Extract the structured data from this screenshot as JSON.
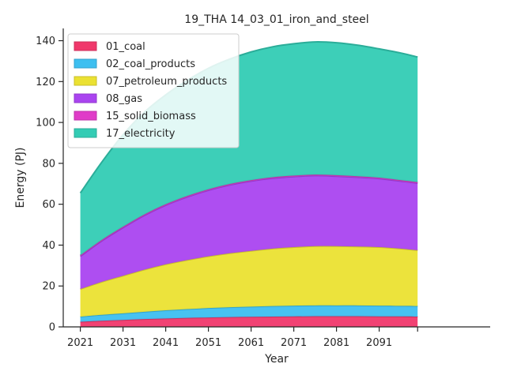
{
  "chart_data": {
    "type": "area",
    "stacked": true,
    "title": "19_THA 14_03_01_iron_and_steel",
    "xlabel": "Year",
    "ylabel": "Energy (PJ)",
    "xlim": [
      2017,
      2117
    ],
    "ylim": [
      0,
      146
    ],
    "x_ticks": [
      2021,
      2031,
      2041,
      2051,
      2061,
      2071,
      2081,
      2091,
      2100
    ],
    "x_tick_labels": [
      "2021",
      "2031",
      "2041",
      "2051",
      "2061",
      "2071",
      "2081",
      "2091",
      ""
    ],
    "y_ticks": [
      0,
      20,
      40,
      60,
      80,
      100,
      120,
      140
    ],
    "grid": false,
    "legend_position": "top-left",
    "x": [
      2021,
      2026,
      2031,
      2036,
      2041,
      2046,
      2051,
      2056,
      2061,
      2066,
      2071,
      2076,
      2081,
      2086,
      2091,
      2096,
      2100
    ],
    "series": [
      {
        "name": "01_coal",
        "color": "#f0386b",
        "values": [
          2.5,
          3.0,
          3.4,
          3.8,
          4.1,
          4.4,
          4.6,
          4.8,
          4.9,
          5.0,
          5.1,
          5.2,
          5.2,
          5.2,
          5.1,
          5.1,
          5.0
        ]
      },
      {
        "name": "02_coal_products",
        "color": "#3dbff0",
        "values": [
          2.5,
          2.9,
          3.2,
          3.6,
          4.0,
          4.3,
          4.6,
          4.8,
          5.0,
          5.2,
          5.3,
          5.3,
          5.3,
          5.3,
          5.3,
          5.2,
          5.2
        ]
      },
      {
        "name": "07_petroleum_products",
        "color": "#ebe132",
        "values": [
          13.5,
          16.1,
          18.4,
          20.6,
          22.5,
          24.0,
          25.3,
          26.4,
          27.3,
          28.1,
          28.6,
          29.0,
          29.0,
          28.8,
          28.6,
          28.0,
          27.3
        ]
      },
      {
        "name": "08_gas",
        "color": "#aa44f0",
        "values": [
          16.0,
          20.0,
          23.5,
          26.5,
          28.9,
          30.8,
          32.3,
          33.4,
          34.1,
          34.4,
          34.5,
          34.5,
          34.2,
          33.9,
          33.5,
          33.0,
          32.8
        ]
      },
      {
        "name": "15_solid_biomass",
        "color": "#e03cc8",
        "values": [
          0.5,
          0.5,
          0.5,
          0.5,
          0.5,
          0.5,
          0.5,
          0.5,
          0.5,
          0.5,
          0.5,
          0.5,
          0.5,
          0.5,
          0.5,
          0.5,
          0.5
        ]
      },
      {
        "name": "17_electricity",
        "color": "#33ccb4",
        "values": [
          30.5,
          38.0,
          45.0,
          50.0,
          53.5,
          56.5,
          59.2,
          61.1,
          62.7,
          63.8,
          64.5,
          64.9,
          64.8,
          64.1,
          63.0,
          62.2,
          61.2
        ]
      }
    ]
  }
}
